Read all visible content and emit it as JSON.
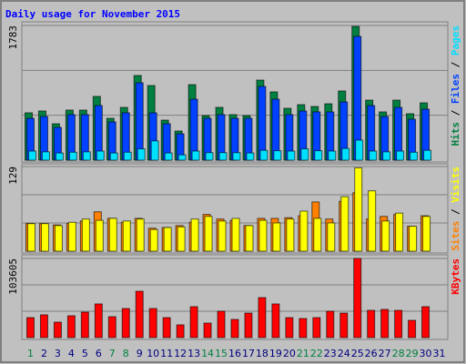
{
  "chart_data": [
    {
      "type": "bar",
      "title": "Daily usage for November 2015",
      "ylim": [
        0,
        1783
      ],
      "yticks": [
        1783
      ],
      "series": [
        {
          "name": "Hits",
          "color": "#008040",
          "values": [
            627,
            651,
            482,
            663,
            663,
            844,
            554,
            699,
            1121,
            988,
            530,
            386,
            1000,
            590,
            699,
            603,
            590,
            1060,
            904,
            687,
            735,
            711,
            747,
            916,
            1771,
            795,
            639,
            795,
            615,
            759,
            null
          ]
        },
        {
          "name": "Files",
          "color": "#0040ff",
          "values": [
            554,
            578,
            434,
            603,
            603,
            723,
            506,
            627,
            1024,
            627,
            482,
            349,
            807,
            554,
            603,
            554,
            554,
            976,
            807,
            603,
            651,
            639,
            639,
            771,
            1639,
            723,
            578,
            699,
            542,
            675,
            null
          ]
        },
        {
          "name": "Pages",
          "color": "#00e0ff",
          "values": [
            120,
            110,
            95,
            105,
            110,
            120,
            95,
            105,
            150,
            255,
            95,
            70,
            120,
            100,
            100,
            100,
            95,
            130,
            125,
            120,
            150,
            125,
            120,
            155,
            265,
            120,
            110,
            120,
            105,
            130,
            null
          ]
        }
      ]
    },
    {
      "type": "bar",
      "ylim": [
        0,
        129
      ],
      "yticks": [
        129
      ],
      "series": [
        {
          "name": "Sites",
          "color": "#ff8000",
          "values": [
            42,
            42,
            40,
            42,
            46,
            60,
            50,
            44,
            50,
            35,
            36,
            39,
            44,
            56,
            49,
            47,
            39,
            50,
            50,
            51,
            54,
            75,
            49,
            76,
            89,
            49,
            53,
            56,
            38,
            54,
            null
          ]
        },
        {
          "name": "Visits",
          "color": "#ffff00",
          "values": [
            42,
            42,
            39,
            44,
            49,
            47,
            50,
            46,
            49,
            33,
            36,
            37,
            49,
            53,
            46,
            50,
            39,
            47,
            43,
            49,
            61,
            50,
            43,
            83,
            127,
            92,
            46,
            58,
            38,
            53,
            null
          ]
        }
      ]
    },
    {
      "type": "bar",
      "ylim": [
        0,
        103605
      ],
      "yticks": [
        103605
      ],
      "categories": [
        "1",
        "2",
        "3",
        "4",
        "5",
        "6",
        "7",
        "8",
        "9",
        "10",
        "11",
        "12",
        "13",
        "14",
        "15",
        "16",
        "17",
        "18",
        "19",
        "20",
        "21",
        "22",
        "23",
        "24",
        "25",
        "26",
        "27",
        "28",
        "29",
        "30",
        "31"
      ],
      "category_colors": [
        "#008040",
        "#000080",
        "#000080",
        "#000080",
        "#000080",
        "#000080",
        "#008040",
        "#008040",
        "#000080",
        "#000080",
        "#000080",
        "#000080",
        "#000080",
        "#008040",
        "#008040",
        "#000080",
        "#000080",
        "#000080",
        "#000080",
        "#000080",
        "#008040",
        "#008040",
        "#000080",
        "#000080",
        "#000080",
        "#000080",
        "#000080",
        "#008040",
        "#008040",
        "#000080",
        "#000080"
      ],
      "series": [
        {
          "name": "KBytes",
          "color": "#ff0000",
          "values": [
            26200,
            29800,
            20250,
            28600,
            33350,
            44100,
            27400,
            38100,
            60700,
            38100,
            26200,
            16700,
            40500,
            19050,
            34550,
            23800,
            32150,
            52400,
            44100,
            26200,
            25000,
            26200,
            34550,
            32150,
            103605,
            35700,
            36900,
            35700,
            22600,
            40500,
            null
          ]
        }
      ]
    }
  ]
}
